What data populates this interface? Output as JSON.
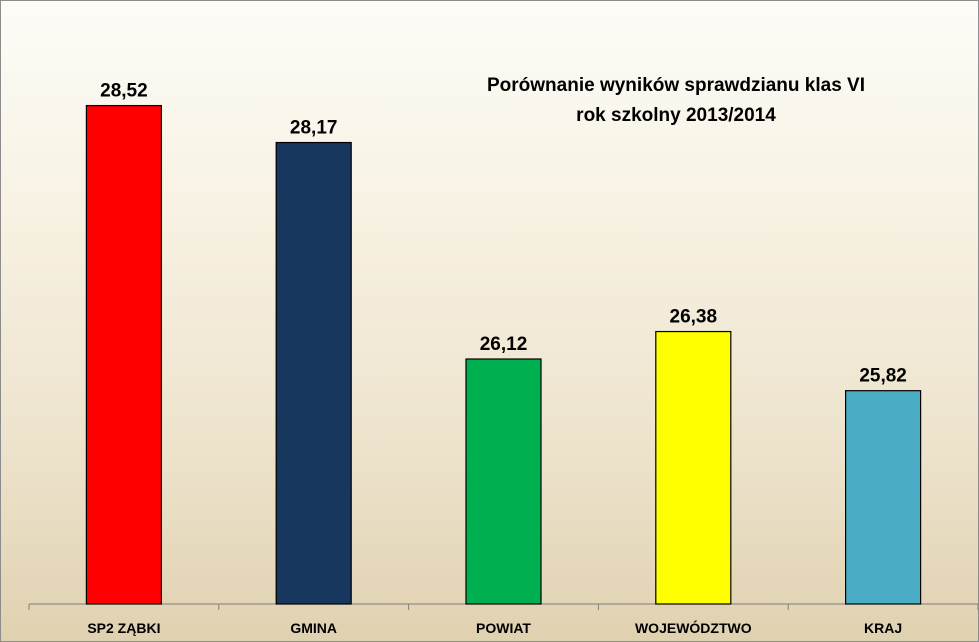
{
  "chart_data": {
    "type": "bar",
    "title_lines": [
      "Porównanie wyników sprawdzianu klas VI",
      "rok szkolny 2013/2014"
    ],
    "categories": [
      "SP2 ZĄBKI",
      "GMINA",
      "POWIAT",
      "WOJEWÓDZTWO",
      "KRAJ"
    ],
    "values": [
      28.52,
      28.17,
      26.12,
      26.38,
      25.82
    ],
    "value_labels": [
      "28,52",
      "28,17",
      "26,12",
      "26,38",
      "25,82"
    ],
    "colors": [
      "#ff0000",
      "#17375e",
      "#00b050",
      "#ffff00",
      "#4bacc6"
    ],
    "xlabel": "",
    "ylabel": "",
    "ylim": [
      23.8,
      28.8
    ],
    "grid": false,
    "legend": "none"
  }
}
